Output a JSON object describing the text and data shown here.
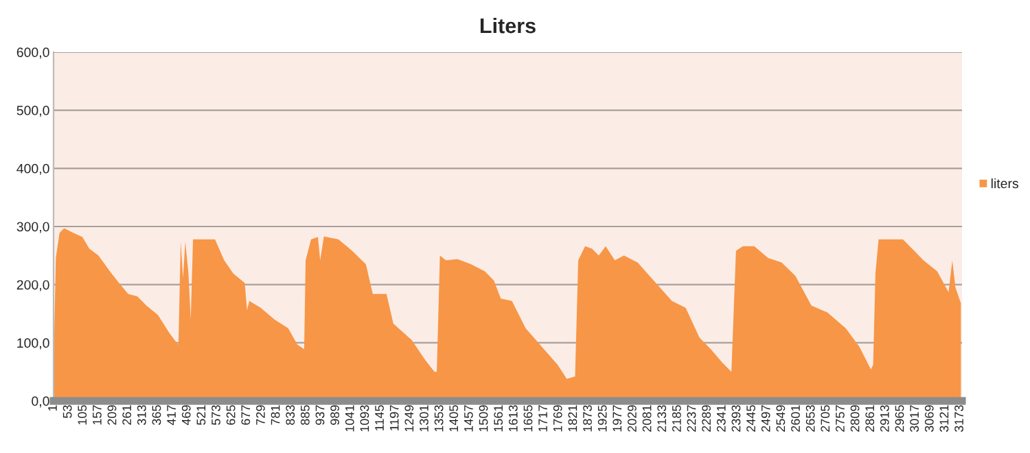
{
  "chart_data": {
    "type": "area",
    "title": "Liters",
    "x": [
      1,
      9,
      22,
      38,
      70,
      102,
      126,
      158,
      198,
      230,
      262,
      294,
      326,
      366,
      406,
      430,
      438,
      446,
      454,
      462,
      473,
      481,
      489,
      518,
      566,
      598,
      630,
      670,
      678,
      686,
      726,
      774,
      822,
      854,
      878,
      883,
      902,
      926,
      934,
      947,
      998,
      1046,
      1094,
      1118,
      1166,
      1190,
      1254,
      1302,
      1334,
      1342,
      1353,
      1374,
      1414,
      1462,
      1510,
      1542,
      1566,
      1605,
      1653,
      1717,
      1765,
      1797,
      1826,
      1837,
      1861,
      1885,
      1909,
      1933,
      1965,
      1997,
      2045,
      2101,
      2165,
      2213,
      2261,
      2301,
      2341,
      2373,
      2389,
      2413,
      2453,
      2501,
      2549,
      2597,
      2653,
      2709,
      2773,
      2821,
      2861,
      2869,
      2877,
      2888,
      2933,
      2973,
      3013,
      3045,
      3093,
      3133,
      3146,
      3157,
      3176
    ],
    "series": [
      {
        "name": "liters",
        "color": "#f79646",
        "values": [
          60,
          246,
          289,
          297,
          289,
          282,
          262,
          250,
          223,
          203,
          184,
          180,
          164,
          148,
          117,
          101,
          97,
          274,
          211,
          274,
          219,
          140,
          278,
          278,
          278,
          242,
          219,
          203,
          156,
          172,
          160,
          140,
          125,
          97,
          89,
          242,
          278,
          282,
          242,
          283,
          278,
          258,
          235,
          184,
          184,
          133,
          105,
          70,
          50,
          50,
          250,
          242,
          244,
          235,
          223,
          207,
          176,
          172,
          125,
          89,
          62,
          38,
          42,
          242,
          266,
          262,
          250,
          266,
          242,
          250,
          238,
          207,
          172,
          160,
          109,
          89,
          66,
          50,
          258,
          266,
          266,
          246,
          238,
          215,
          164,
          152,
          125,
          93,
          54,
          62,
          219,
          278,
          278,
          278,
          258,
          242,
          223,
          187,
          242,
          195,
          168
        ]
      }
    ],
    "xlim": [
      1,
      3180
    ],
    "xticks": [
      1,
      53,
      105,
      157,
      209,
      261,
      313,
      365,
      417,
      469,
      521,
      573,
      625,
      677,
      729,
      781,
      833,
      885,
      937,
      989,
      1041,
      1093,
      1145,
      1197,
      1249,
      1301,
      1353,
      1405,
      1457,
      1509,
      1561,
      1613,
      1665,
      1717,
      1769,
      1821,
      1873,
      1925,
      1977,
      2029,
      2081,
      2133,
      2185,
      2237,
      2289,
      2341,
      2393,
      2445,
      2497,
      2549,
      2601,
      2653,
      2705,
      2757,
      2809,
      2861,
      2913,
      2965,
      3017,
      3069,
      3121,
      3173
    ],
    "ylim": [
      0,
      600
    ],
    "yticks": [
      {
        "value": 0,
        "label": "0,0"
      },
      {
        "value": 100,
        "label": "100,0"
      },
      {
        "value": 200,
        "label": "200,0"
      },
      {
        "value": 300,
        "label": "300,0"
      },
      {
        "value": 400,
        "label": "400,0"
      },
      {
        "value": 500,
        "label": "500,0"
      },
      {
        "value": 600,
        "label": "600,0"
      }
    ],
    "grid": "y",
    "legend": "right"
  }
}
